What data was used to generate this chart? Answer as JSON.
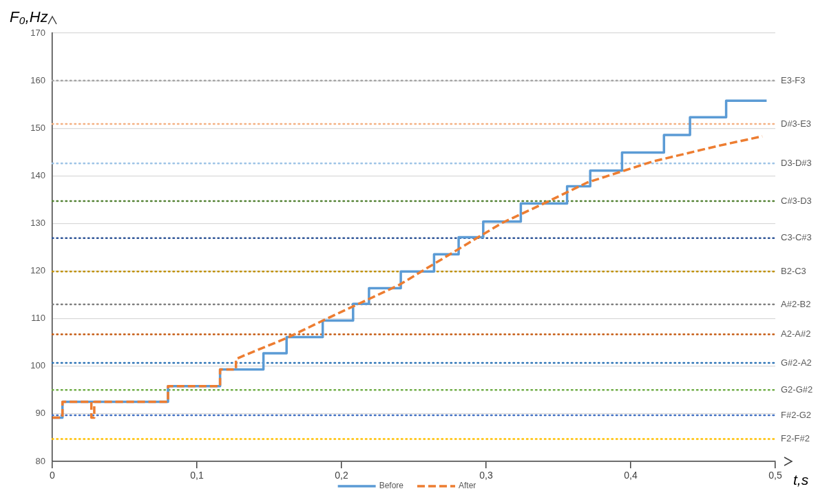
{
  "chart_data": {
    "type": "line",
    "ylabel": "F₀,Hz",
    "xlabel": "t,s",
    "xlim": [
      0,
      0.5
    ],
    "xticks": [
      {
        "value": 0,
        "label": "0"
      },
      {
        "value": 0.1,
        "label": "0,1"
      },
      {
        "value": 0.2,
        "label": "0,2"
      },
      {
        "value": 0.3,
        "label": "0,3"
      },
      {
        "value": 0.4,
        "label": "0,4"
      },
      {
        "value": 0.5,
        "label": "0,5"
      }
    ],
    "ylim": [
      80,
      170
    ],
    "yticks": [
      80,
      90,
      100,
      110,
      120,
      130,
      140,
      150,
      160,
      170
    ],
    "grid": "y",
    "legend": "bottom",
    "marker": "none",
    "series": [
      {
        "name": "Before",
        "type": "step",
        "color": "#5b9bd5",
        "line_style": "solid",
        "x": [
          0,
          0.007,
          0.08,
          0.116,
          0.146,
          0.162,
          0.187,
          0.208,
          0.219,
          0.241,
          0.264,
          0.281,
          0.298,
          0.324,
          0.356,
          0.372,
          0.394,
          0.423,
          0.441,
          0.466,
          0.494
        ],
        "values": [
          89.2,
          92.5,
          95.8,
          99.3,
          102.7,
          106.1,
          109.6,
          113.1,
          116.4,
          119.9,
          123.5,
          127.1,
          130.4,
          134.2,
          137.8,
          141.1,
          144.9,
          148.6,
          152.3,
          155.8,
          155.8
        ]
      },
      {
        "name": "After",
        "color": "#ed7d31",
        "line_style": "dashed",
        "x": [
          0,
          0.007,
          0.007,
          0.027,
          0.027,
          0.029,
          0.029,
          0.08,
          0.08,
          0.116,
          0.116,
          0.127,
          0.127,
          0.133,
          0.162,
          0.192,
          0.24,
          0.288,
          0.311,
          0.34,
          0.37,
          0.415,
          0.462,
          0.491
        ],
        "values": [
          89.2,
          89.2,
          92.5,
          92.5,
          89.2,
          89.2,
          92.5,
          92.5,
          95.8,
          95.8,
          99.3,
          99.3,
          101.5,
          102.3,
          105.9,
          110.3,
          117.1,
          125.9,
          130.1,
          134.2,
          138.6,
          143.0,
          146.4,
          148.3
        ]
      }
    ],
    "ref_lines": [
      {
        "axis": "y",
        "value": 160.0,
        "label": "E3-F3",
        "color": "#a6a6a6",
        "line_style": "dotted"
      },
      {
        "axis": "y",
        "value": 150.9,
        "label": "D#3-E3",
        "color": "#f4b183",
        "line_style": "dotted"
      },
      {
        "axis": "y",
        "value": 142.6,
        "label": "D3-D#3",
        "color": "#9dc3e6",
        "line_style": "dotted"
      },
      {
        "axis": "y",
        "value": 134.7,
        "label": "C#3-D3",
        "color": "#548235",
        "line_style": "dotted"
      },
      {
        "axis": "y",
        "value": 126.9,
        "label": "C3-C#3",
        "color": "#2f5597",
        "line_style": "dotted"
      },
      {
        "axis": "y",
        "value": 119.9,
        "label": "B2-C3",
        "color": "#bf9000",
        "line_style": "dotted"
      },
      {
        "axis": "y",
        "value": 113.0,
        "label": "A#2-B2",
        "color": "#7f7f7f",
        "line_style": "dotted"
      },
      {
        "axis": "y",
        "value": 106.7,
        "label": "A2-A#2",
        "color": "#c55a11",
        "line_style": "dotted"
      },
      {
        "axis": "y",
        "value": 100.7,
        "label": "G#2-A2",
        "color": "#2e75b6",
        "line_style": "dotted"
      },
      {
        "axis": "y",
        "value": 95.0,
        "label": "G2-G#2",
        "color": "#70ad47",
        "line_style": "dotted"
      },
      {
        "axis": "y",
        "value": 89.7,
        "label": "F#2-G2",
        "color": "#4472c4",
        "line_style": "dotted"
      },
      {
        "axis": "y",
        "value": 84.7,
        "label": "F2-F#2",
        "color": "#ffc000",
        "line_style": "dotted"
      }
    ]
  }
}
